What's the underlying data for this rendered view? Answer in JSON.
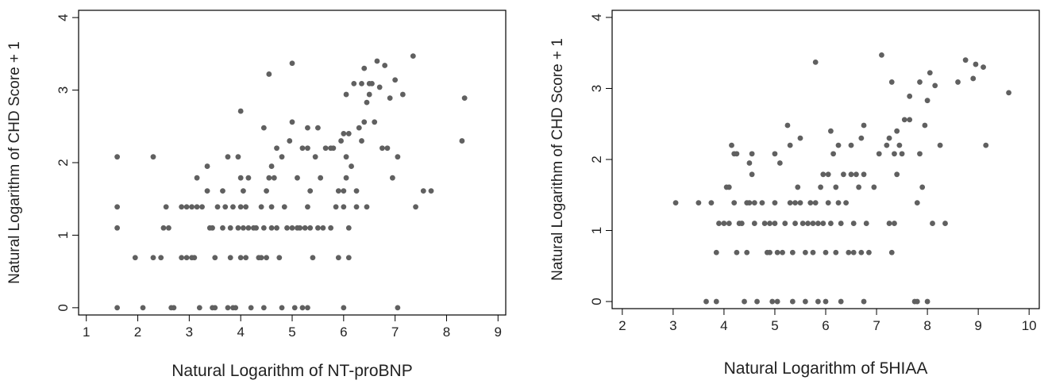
{
  "chart_data": [
    {
      "type": "scatter",
      "xlabel": "Natural Logarithm of NT-proBNP",
      "ylabel": "Natural Logarithm of CHD Score + 1",
      "xlim": [
        0.85,
        9.15
      ],
      "ylim": [
        -0.1,
        4.1
      ],
      "xticks": [
        1,
        2,
        3,
        4,
        5,
        6,
        7,
        8,
        9
      ],
      "yticks": [
        0,
        1,
        2,
        3,
        4
      ],
      "grid": false,
      "marker_color": "#606060",
      "points": [
        [
          1.6,
          0
        ],
        [
          1.6,
          1.1
        ],
        [
          1.6,
          1.39
        ],
        [
          1.6,
          2.08
        ],
        [
          1.95,
          0.69
        ],
        [
          2.1,
          0
        ],
        [
          2.3,
          0.69
        ],
        [
          2.3,
          2.08
        ],
        [
          2.45,
          0.69
        ],
        [
          2.5,
          1.1
        ],
        [
          2.55,
          1.39
        ],
        [
          2.6,
          1.1
        ],
        [
          2.65,
          0
        ],
        [
          2.7,
          0
        ],
        [
          2.85,
          0.69
        ],
        [
          2.85,
          1.39
        ],
        [
          2.95,
          0.69
        ],
        [
          2.95,
          1.39
        ],
        [
          3.05,
          0.69
        ],
        [
          3.05,
          1.39
        ],
        [
          3.1,
          0.69
        ],
        [
          3.15,
          1.39
        ],
        [
          3.15,
          1.79
        ],
        [
          3.2,
          0
        ],
        [
          3.25,
          1.39
        ],
        [
          3.35,
          1.95
        ],
        [
          3.35,
          1.61
        ],
        [
          3.4,
          1.1
        ],
        [
          3.45,
          1.1
        ],
        [
          3.45,
          0
        ],
        [
          3.5,
          0
        ],
        [
          3.5,
          0.69
        ],
        [
          3.55,
          1.39
        ],
        [
          3.65,
          1.61
        ],
        [
          3.65,
          1.1
        ],
        [
          3.7,
          1.39
        ],
        [
          3.75,
          2.08
        ],
        [
          3.75,
          0
        ],
        [
          3.8,
          0.69
        ],
        [
          3.8,
          1.1
        ],
        [
          3.85,
          1.39
        ],
        [
          3.85,
          0
        ],
        [
          3.9,
          0
        ],
        [
          3.95,
          2.08
        ],
        [
          3.95,
          1.1
        ],
        [
          4.0,
          2.71
        ],
        [
          4.0,
          1.39
        ],
        [
          4.0,
          1.79
        ],
        [
          4.0,
          0.69
        ],
        [
          4.05,
          1.1
        ],
        [
          4.05,
          1.61
        ],
        [
          4.1,
          0.69
        ],
        [
          4.1,
          1.39
        ],
        [
          4.15,
          1.79
        ],
        [
          4.15,
          1.1
        ],
        [
          4.2,
          0
        ],
        [
          4.25,
          1.1
        ],
        [
          4.3,
          1.1
        ],
        [
          4.35,
          0.69
        ],
        [
          4.4,
          1.39
        ],
        [
          4.4,
          0.69
        ],
        [
          4.45,
          1.1
        ],
        [
          4.45,
          0
        ],
        [
          4.45,
          2.48
        ],
        [
          4.5,
          1.61
        ],
        [
          4.5,
          0.69
        ],
        [
          4.55,
          3.22
        ],
        [
          4.55,
          1.79
        ],
        [
          4.6,
          1.1
        ],
        [
          4.6,
          1.39
        ],
        [
          4.6,
          1.95
        ],
        [
          4.65,
          1.79
        ],
        [
          4.7,
          2.2
        ],
        [
          4.7,
          1.1
        ],
        [
          4.75,
          0.69
        ],
        [
          4.8,
          2.08
        ],
        [
          4.8,
          0
        ],
        [
          4.85,
          1.39
        ],
        [
          4.9,
          1.1
        ],
        [
          4.95,
          2.3
        ],
        [
          5.0,
          3.37
        ],
        [
          5.0,
          2.56
        ],
        [
          5.0,
          1.1
        ],
        [
          5.05,
          0
        ],
        [
          5.1,
          1.1
        ],
        [
          5.1,
          1.79
        ],
        [
          5.15,
          1.1
        ],
        [
          5.2,
          2.2
        ],
        [
          5.2,
          0
        ],
        [
          5.25,
          1.1
        ],
        [
          5.3,
          2.48
        ],
        [
          5.3,
          2.2
        ],
        [
          5.3,
          1.39
        ],
        [
          5.3,
          0
        ],
        [
          5.35,
          1.61
        ],
        [
          5.35,
          1.1
        ],
        [
          5.4,
          0.69
        ],
        [
          5.45,
          2.08
        ],
        [
          5.5,
          2.48
        ],
        [
          5.5,
          1.1
        ],
        [
          5.55,
          1.79
        ],
        [
          5.6,
          1.1
        ],
        [
          5.65,
          2.2
        ],
        [
          5.75,
          2.2
        ],
        [
          5.75,
          1.1
        ],
        [
          5.8,
          2.2
        ],
        [
          5.85,
          1.39
        ],
        [
          5.9,
          1.61
        ],
        [
          5.9,
          0.69
        ],
        [
          5.95,
          2.3
        ],
        [
          6.0,
          2.4
        ],
        [
          6.0,
          1.61
        ],
        [
          6.0,
          1.39
        ],
        [
          6.0,
          0
        ],
        [
          6.05,
          2.94
        ],
        [
          6.05,
          2.08
        ],
        [
          6.05,
          1.79
        ],
        [
          6.1,
          2.4
        ],
        [
          6.1,
          1.1
        ],
        [
          6.1,
          0.69
        ],
        [
          6.15,
          1.95
        ],
        [
          6.2,
          3.09
        ],
        [
          6.25,
          1.61
        ],
        [
          6.25,
          1.39
        ],
        [
          6.3,
          2.48
        ],
        [
          6.35,
          3.09
        ],
        [
          6.35,
          2.3
        ],
        [
          6.4,
          3.3
        ],
        [
          6.4,
          2.56
        ],
        [
          6.45,
          2.83
        ],
        [
          6.45,
          1.39
        ],
        [
          6.5,
          3.09
        ],
        [
          6.5,
          2.94
        ],
        [
          6.55,
          3.09
        ],
        [
          6.6,
          2.56
        ],
        [
          6.65,
          3.4
        ],
        [
          6.7,
          3.04
        ],
        [
          6.75,
          2.2
        ],
        [
          6.8,
          3.34
        ],
        [
          6.85,
          2.2
        ],
        [
          6.9,
          2.89
        ],
        [
          6.95,
          1.79
        ],
        [
          7.0,
          3.14
        ],
        [
          7.05,
          2.08
        ],
        [
          7.05,
          0
        ],
        [
          7.15,
          2.94
        ],
        [
          7.35,
          3.47
        ],
        [
          7.4,
          1.39
        ],
        [
          7.55,
          1.61
        ],
        [
          7.7,
          1.61
        ],
        [
          8.3,
          2.3
        ],
        [
          8.35,
          2.89
        ]
      ]
    },
    {
      "type": "scatter",
      "xlabel": "Natural Logarithm of 5HIAA",
      "ylabel": "Natural Logarithm of CHD Score + 1",
      "xlim": [
        1.8,
        10.2
      ],
      "ylim": [
        -0.1,
        4.1
      ],
      "xticks": [
        2,
        3,
        4,
        5,
        6,
        7,
        8,
        9,
        10
      ],
      "yticks": [
        0,
        1,
        2,
        3,
        4
      ],
      "grid": false,
      "marker_color": "#606060",
      "points": [
        [
          3.05,
          1.39
        ],
        [
          3.5,
          1.39
        ],
        [
          3.65,
          0
        ],
        [
          3.75,
          1.39
        ],
        [
          3.85,
          0.69
        ],
        [
          3.85,
          0
        ],
        [
          3.9,
          1.1
        ],
        [
          4.0,
          1.1
        ],
        [
          4.05,
          1.61
        ],
        [
          4.1,
          1.61
        ],
        [
          4.1,
          1.1
        ],
        [
          4.15,
          2.2
        ],
        [
          4.2,
          2.08
        ],
        [
          4.2,
          1.39
        ],
        [
          4.25,
          2.08
        ],
        [
          4.25,
          0.69
        ],
        [
          4.3,
          1.1
        ],
        [
          4.35,
          1.1
        ],
        [
          4.4,
          0
        ],
        [
          4.45,
          1.39
        ],
        [
          4.45,
          0.69
        ],
        [
          4.5,
          1.95
        ],
        [
          4.5,
          1.39
        ],
        [
          4.55,
          2.08
        ],
        [
          4.55,
          1.79
        ],
        [
          4.6,
          1.39
        ],
        [
          4.6,
          1.1
        ],
        [
          4.65,
          0
        ],
        [
          4.75,
          1.39
        ],
        [
          4.8,
          1.1
        ],
        [
          4.85,
          0.69
        ],
        [
          4.9,
          1.1
        ],
        [
          4.9,
          0.69
        ],
        [
          4.95,
          0
        ],
        [
          5.0,
          2.08
        ],
        [
          5.0,
          1.39
        ],
        [
          5.0,
          1.1
        ],
        [
          5.05,
          0.69
        ],
        [
          5.05,
          0
        ],
        [
          5.1,
          1.95
        ],
        [
          5.15,
          0.69
        ],
        [
          5.2,
          1.1
        ],
        [
          5.25,
          2.48
        ],
        [
          5.3,
          2.2
        ],
        [
          5.3,
          1.39
        ],
        [
          5.35,
          0.69
        ],
        [
          5.35,
          0
        ],
        [
          5.4,
          1.39
        ],
        [
          5.4,
          1.1
        ],
        [
          5.45,
          1.61
        ],
        [
          5.5,
          1.39
        ],
        [
          5.5,
          2.3
        ],
        [
          5.55,
          1.1
        ],
        [
          5.6,
          0.69
        ],
        [
          5.6,
          0
        ],
        [
          5.65,
          1.1
        ],
        [
          5.7,
          1.39
        ],
        [
          5.75,
          0.69
        ],
        [
          5.75,
          1.1
        ],
        [
          5.8,
          3.37
        ],
        [
          5.8,
          1.39
        ],
        [
          5.85,
          1.1
        ],
        [
          5.85,
          0
        ],
        [
          5.9,
          1.61
        ],
        [
          5.95,
          1.79
        ],
        [
          5.95,
          1.1
        ],
        [
          6.0,
          0.69
        ],
        [
          6.0,
          0
        ],
        [
          6.05,
          1.79
        ],
        [
          6.05,
          1.39
        ],
        [
          6.1,
          2.4
        ],
        [
          6.1,
          1.1
        ],
        [
          6.15,
          2.08
        ],
        [
          6.2,
          1.61
        ],
        [
          6.2,
          0.69
        ],
        [
          6.25,
          2.2
        ],
        [
          6.25,
          1.39
        ],
        [
          6.3,
          1.1
        ],
        [
          6.3,
          0
        ],
        [
          6.35,
          1.79
        ],
        [
          6.4,
          1.39
        ],
        [
          6.45,
          0.69
        ],
        [
          6.5,
          2.2
        ],
        [
          6.5,
          1.79
        ],
        [
          6.55,
          1.1
        ],
        [
          6.55,
          0.69
        ],
        [
          6.6,
          1.79
        ],
        [
          6.65,
          1.61
        ],
        [
          6.7,
          2.3
        ],
        [
          6.7,
          0.69
        ],
        [
          6.75,
          2.48
        ],
        [
          6.75,
          1.79
        ],
        [
          6.75,
          0
        ],
        [
          6.8,
          1.1
        ],
        [
          6.85,
          0.69
        ],
        [
          6.95,
          1.61
        ],
        [
          7.05,
          2.08
        ],
        [
          7.1,
          3.47
        ],
        [
          7.2,
          2.2
        ],
        [
          7.25,
          2.3
        ],
        [
          7.25,
          1.1
        ],
        [
          7.3,
          3.09
        ],
        [
          7.3,
          0.69
        ],
        [
          7.35,
          2.08
        ],
        [
          7.35,
          1.1
        ],
        [
          7.4,
          2.4
        ],
        [
          7.4,
          1.79
        ],
        [
          7.45,
          2.2
        ],
        [
          7.5,
          2.08
        ],
        [
          7.55,
          2.56
        ],
        [
          7.65,
          2.89
        ],
        [
          7.65,
          2.56
        ],
        [
          7.75,
          0
        ],
        [
          7.8,
          1.39
        ],
        [
          7.8,
          0
        ],
        [
          7.85,
          3.09
        ],
        [
          7.85,
          2.08
        ],
        [
          7.9,
          1.61
        ],
        [
          7.95,
          2.48
        ],
        [
          8.0,
          2.83
        ],
        [
          8.0,
          0
        ],
        [
          8.05,
          3.22
        ],
        [
          8.1,
          1.1
        ],
        [
          8.15,
          3.04
        ],
        [
          8.25,
          2.2
        ],
        [
          8.35,
          1.1
        ],
        [
          8.6,
          3.09
        ],
        [
          8.75,
          3.4
        ],
        [
          8.9,
          3.14
        ],
        [
          8.95,
          3.34
        ],
        [
          9.1,
          3.3
        ],
        [
          9.15,
          2.2
        ],
        [
          9.6,
          2.94
        ]
      ]
    }
  ]
}
